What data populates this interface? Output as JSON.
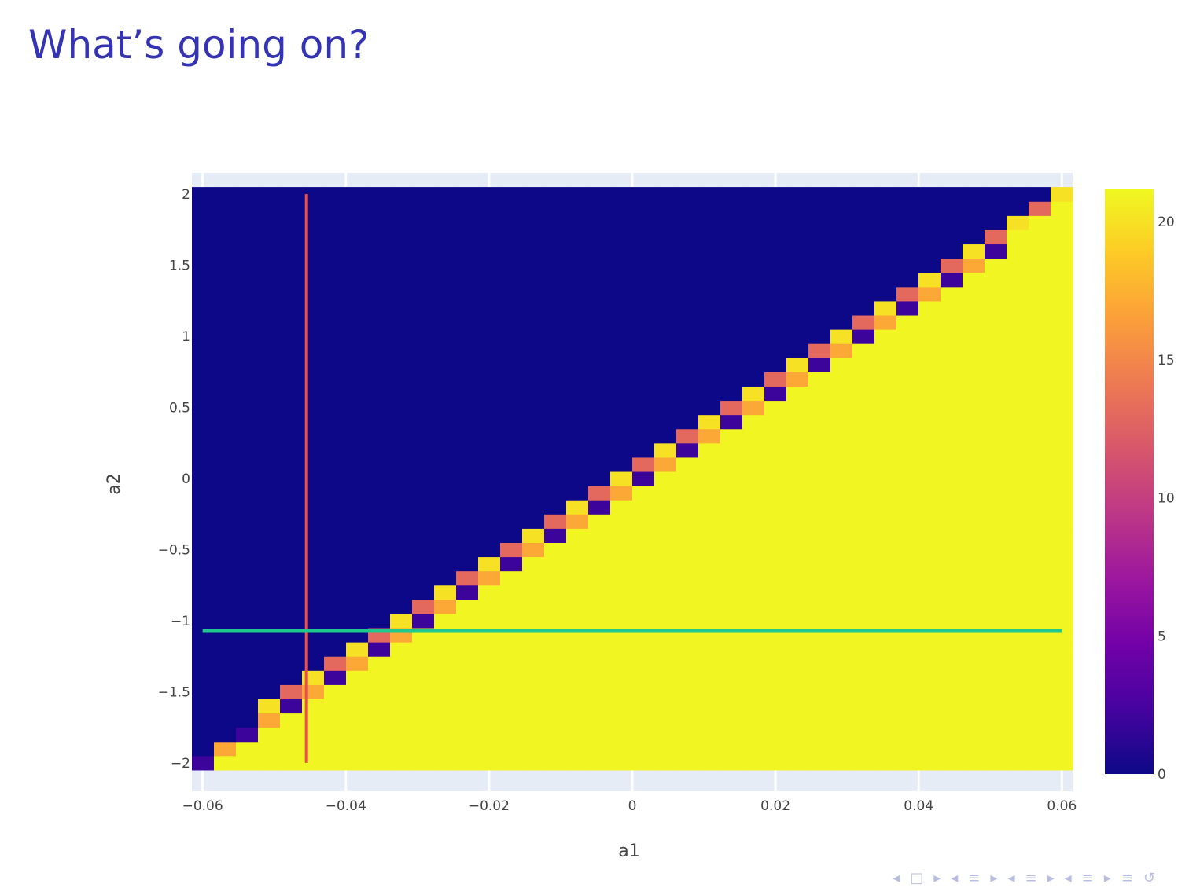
{
  "slide": {
    "title": "What’s going on?"
  },
  "navigation": {
    "symbols": [
      "◂",
      "□",
      "▸",
      "◂",
      "≡",
      "▸",
      "◂",
      "≡",
      "▸",
      "◂",
      "≡",
      "▸",
      "≡",
      "↺"
    ]
  },
  "chart_data": {
    "type": "heatmap",
    "title": "",
    "xlabel": "a1",
    "ylabel": "a2",
    "xlim": [
      -0.0615,
      0.0615
    ],
    "ylim": [
      -2.2,
      2.15
    ],
    "x_tick_labels": [
      "−0.06",
      "−0.04",
      "−0.02",
      "0",
      "0.02",
      "0.04",
      "0.06"
    ],
    "x_tick_values": [
      -0.06,
      -0.04,
      -0.02,
      0,
      0.02,
      0.04,
      0.06
    ],
    "y_tick_labels": [
      "−2",
      "−1.5",
      "−1",
      "−0.5",
      "0",
      "0.5",
      "1",
      "1.5",
      "2"
    ],
    "y_tick_values": [
      -2,
      -1.5,
      -1,
      -0.5,
      0,
      0.5,
      1,
      1.5,
      2
    ],
    "grid": true,
    "heatmap": {
      "x_range": [
        -0.0615,
        0.0615
      ],
      "y_range": [
        -2.05,
        2.05
      ],
      "columns": 40,
      "rows": 41,
      "low_value": 0,
      "high_value": 21,
      "boundary": "a2 = 33.3 * a1",
      "boundary_values": [
        2,
        13,
        17,
        20
      ]
    },
    "colorbar": {
      "tick_labels": [
        "0",
        "5",
        "10",
        "15",
        "20"
      ],
      "tick_values": [
        0,
        5,
        10,
        15,
        20
      ],
      "range": [
        0,
        21.2
      ],
      "colorscale": [
        "#0d0887",
        "#46039f",
        "#7201a8",
        "#9c179e",
        "#bd3786",
        "#d8576b",
        "#ed7953",
        "#fb9f3a",
        "#fdca26",
        "#f0f921"
      ]
    },
    "series": [
      {
        "kind": "vertical-line",
        "x": -0.0455,
        "y_range": [
          -2,
          2
        ],
        "color": "#e8514a"
      },
      {
        "kind": "horizontal-line",
        "y": -1.07,
        "x_range": [
          -0.06,
          0.06
        ],
        "color": "#1fc98e"
      }
    ]
  }
}
